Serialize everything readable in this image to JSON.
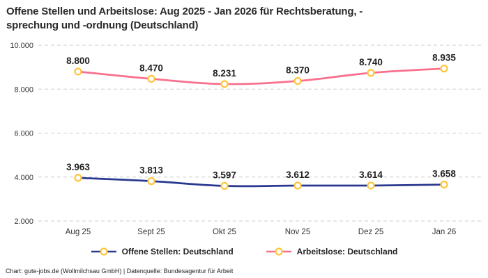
{
  "title_lines": [
    "Offene Stellen und Arbeitslose: Aug 2025 - Jan 2026 für Rechtsberatung, -",
    "sprechung und -ordnung (Deutschland)"
  ],
  "footer": "Chart: gute-jobs.de (Wollmilchsau GmbH) | Datenquelle: Bundesagentur für Arbeit",
  "colors": {
    "offene_stellen": "#2A3990",
    "arbeitslose": "#F9708E",
    "marker_ring": "#FFC53D",
    "marker_fill": "#FFFFFF",
    "gridline": "#CCCCCC",
    "axis_text": "#333333",
    "label_text": "#222222"
  },
  "chart_data": {
    "type": "line",
    "title": "Offene Stellen und Arbeitslose: Aug 2025 - Jan 2026 für Rechtsberatung, -sprechung und -ordnung (Deutschland)",
    "categories": [
      "Aug 25",
      "Sept 25",
      "Okt 25",
      "Nov 25",
      "Dez 25",
      "Jan 26"
    ],
    "series": [
      {
        "name": "Offene Stellen: Deutschland",
        "color_key": "offene_stellen",
        "values": [
          3963,
          3813,
          3597,
          3612,
          3614,
          3658
        ],
        "labels": [
          "3.963",
          "3.813",
          "3.597",
          "3.612",
          "3.614",
          "3.658"
        ]
      },
      {
        "name": "Arbeitslose: Deutschland",
        "color_key": "arbeitslose",
        "values": [
          8800,
          8470,
          8231,
          8370,
          8740,
          8935
        ],
        "labels": [
          "8.800",
          "8.470",
          "8.231",
          "8.370",
          "8.740",
          "8.935"
        ]
      }
    ],
    "ylim": [
      2000,
      10000
    ],
    "yticks": [
      2000,
      4000,
      6000,
      8000,
      10000
    ],
    "ytick_labels": [
      "2.000",
      "4.000",
      "6.000",
      "8.000",
      "10.000"
    ],
    "xlabel": "",
    "ylabel": "",
    "grid": "horizontal-dashed",
    "legend_position": "bottom"
  }
}
